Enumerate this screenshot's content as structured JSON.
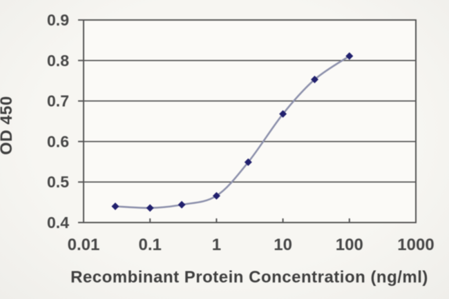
{
  "chart_data": {
    "type": "line",
    "title": "",
    "xlabel": "Recombinant Protein Concentration (ng/ml)",
    "ylabel": "OD 450",
    "x_scale": "log",
    "xlim": [
      0.01,
      1000
    ],
    "ylim": [
      0.4,
      0.9
    ],
    "x_ticks": [
      "0.01",
      "0.1",
      "1",
      "10",
      "100",
      "1000"
    ],
    "y_ticks": [
      "0.4",
      "0.5",
      "0.6",
      "0.7",
      "0.8",
      "0.9"
    ],
    "grid": "horizontal",
    "legend": "none",
    "x": [
      0.03,
      0.1,
      0.3,
      1,
      3,
      10,
      30,
      100
    ],
    "series": [
      {
        "name": "OD 450",
        "marker": "diamond",
        "values": [
          0.44,
          0.436,
          0.444,
          0.466,
          0.549,
          0.668,
          0.753,
          0.811
        ]
      }
    ]
  },
  "colors": {
    "background": "#f2f1ed",
    "plot_background": "#fbfaf7",
    "grid": "#4c4c4c",
    "axis": "#555555",
    "text": "#474747",
    "line": "#8d91ac",
    "marker": "#22216e"
  }
}
